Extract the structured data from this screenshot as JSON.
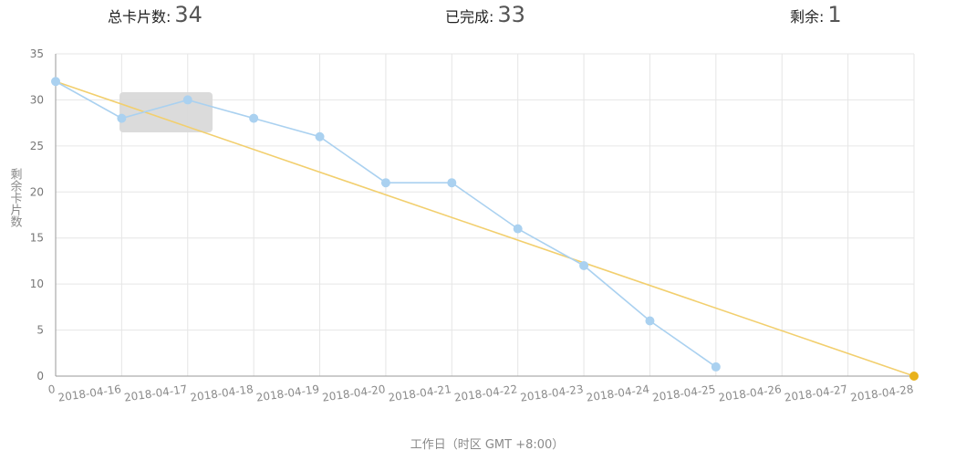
{
  "stats": {
    "total_label": "总卡片数",
    "total_value": "34",
    "done_label": "已完成",
    "done_value": "33",
    "remain_label": "剩余",
    "remain_value": "1",
    "separator": ":"
  },
  "chart_data": {
    "type": "line",
    "xlabel": "工作日（时区 GMT +8:00）",
    "ylabel": "剩余卡片数",
    "ylim": [
      0,
      35
    ],
    "yticks": [
      0,
      5,
      10,
      15,
      20,
      25,
      30,
      35
    ],
    "x_origin_label": "0",
    "categories": [
      "2018-04-16",
      "2018-04-17",
      "2018-04-18",
      "2018-04-19",
      "2018-04-20",
      "2018-04-21",
      "2018-04-22",
      "2018-04-23",
      "2018-04-24",
      "2018-04-25",
      "2018-04-26",
      "2018-04-27",
      "2018-04-28"
    ],
    "grid": true,
    "series": [
      {
        "kind": "actual",
        "color": "#aad1f0",
        "x": [
          "0",
          "2018-04-16",
          "2018-04-17",
          "2018-04-18",
          "2018-04-19",
          "2018-04-20",
          "2018-04-21",
          "2018-04-22",
          "2018-04-23",
          "2018-04-24",
          "2018-04-25"
        ],
        "values": [
          32,
          28,
          30,
          28,
          26,
          21,
          21,
          16,
          12,
          6,
          1
        ]
      },
      {
        "kind": "ideal",
        "color": "#f2cf6e",
        "x": [
          "0",
          "2018-04-28"
        ],
        "values": [
          32,
          0
        ]
      }
    ],
    "tooltip": {
      "visible": true,
      "color": "#d9d9d9"
    }
  }
}
